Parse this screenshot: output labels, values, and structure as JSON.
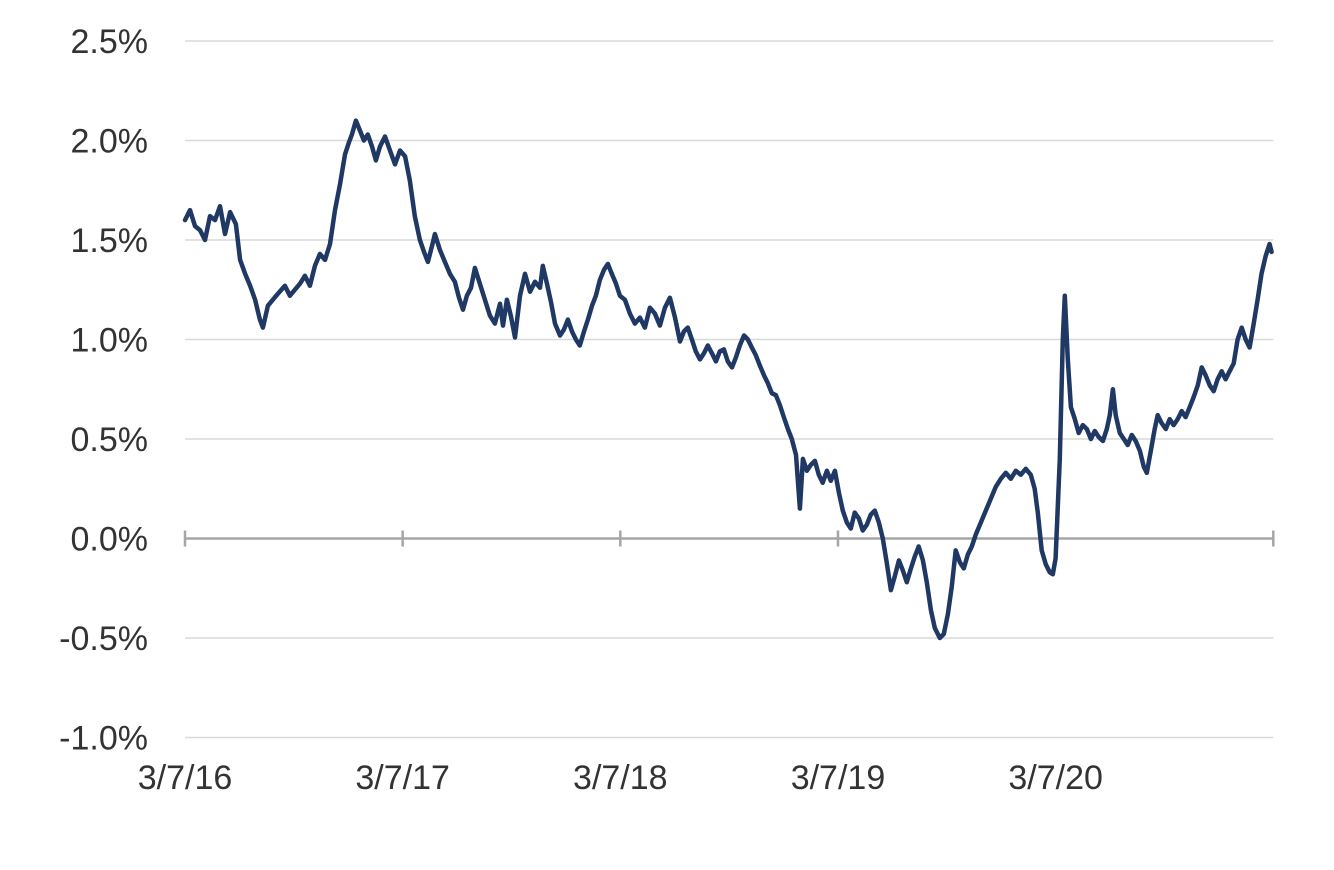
{
  "chart_data": {
    "type": "line",
    "title": "",
    "x_axis": {
      "tick_labels": [
        "3/7/16",
        "3/7/17",
        "3/7/18",
        "3/7/19",
        "3/7/20"
      ],
      "tick_positions": [
        0,
        1,
        2,
        3,
        4
      ],
      "boundary_positions": [
        0,
        1,
        2,
        3,
        4,
        5
      ],
      "range": [
        0,
        5
      ],
      "unit": "years since 3/7/16"
    },
    "y_axis": {
      "tick_labels": [
        "2.5%",
        "2.0%",
        "1.5%",
        "1.0%",
        "0.5%",
        "0.0%",
        "-0.5%",
        "-1.0%"
      ],
      "tick_values": [
        2.5,
        2.0,
        1.5,
        1.0,
        0.5,
        0.0,
        -0.5,
        -1.0
      ],
      "range": [
        -1.0,
        2.5
      ],
      "unit": "percent"
    },
    "grid": "on",
    "legend": "none",
    "colors": {
      "line": "#1f3864",
      "gridline": "#d9d9d9",
      "zero_axis": "#a6a6a6",
      "label_text": "#333333",
      "background": "#ffffff"
    },
    "series": [
      {
        "name": "",
        "points": [
          [
            0.0,
            1.6
          ],
          [
            0.023,
            1.65
          ],
          [
            0.046,
            1.57
          ],
          [
            0.069,
            1.55
          ],
          [
            0.092,
            1.5
          ],
          [
            0.115,
            1.62
          ],
          [
            0.138,
            1.6
          ],
          [
            0.161,
            1.67
          ],
          [
            0.184,
            1.53
          ],
          [
            0.207,
            1.64
          ],
          [
            0.234,
            1.58
          ],
          [
            0.253,
            1.4
          ],
          [
            0.276,
            1.33
          ],
          [
            0.299,
            1.27
          ],
          [
            0.322,
            1.2
          ],
          [
            0.344,
            1.1
          ],
          [
            0.358,
            1.06
          ],
          [
            0.381,
            1.17
          ],
          [
            0.404,
            1.2
          ],
          [
            0.427,
            1.23
          ],
          [
            0.459,
            1.27
          ],
          [
            0.482,
            1.22
          ],
          [
            0.505,
            1.25
          ],
          [
            0.528,
            1.28
          ],
          [
            0.551,
            1.32
          ],
          [
            0.574,
            1.27
          ],
          [
            0.597,
            1.37
          ],
          [
            0.62,
            1.43
          ],
          [
            0.643,
            1.4
          ],
          [
            0.666,
            1.48
          ],
          [
            0.689,
            1.65
          ],
          [
            0.712,
            1.78
          ],
          [
            0.735,
            1.93
          ],
          [
            0.753,
            1.99
          ],
          [
            0.767,
            2.03
          ],
          [
            0.785,
            2.1
          ],
          [
            0.804,
            2.05
          ],
          [
            0.822,
            2.0
          ],
          [
            0.84,
            2.03
          ],
          [
            0.859,
            1.97
          ],
          [
            0.877,
            1.9
          ],
          [
            0.896,
            1.97
          ],
          [
            0.919,
            2.02
          ],
          [
            0.942,
            1.95
          ],
          [
            0.965,
            1.88
          ],
          [
            0.988,
            1.95
          ],
          [
            1.011,
            1.92
          ],
          [
            1.033,
            1.8
          ],
          [
            1.056,
            1.62
          ],
          [
            1.079,
            1.5
          ],
          [
            1.098,
            1.44
          ],
          [
            1.116,
            1.39
          ],
          [
            1.135,
            1.47
          ],
          [
            1.148,
            1.53
          ],
          [
            1.171,
            1.45
          ],
          [
            1.194,
            1.39
          ],
          [
            1.217,
            1.33
          ],
          [
            1.24,
            1.29
          ],
          [
            1.259,
            1.21
          ],
          [
            1.277,
            1.15
          ],
          [
            1.295,
            1.22
          ],
          [
            1.314,
            1.26
          ],
          [
            1.332,
            1.36
          ],
          [
            1.355,
            1.28
          ],
          [
            1.378,
            1.2
          ],
          [
            1.401,
            1.12
          ],
          [
            1.424,
            1.08
          ],
          [
            1.447,
            1.18
          ],
          [
            1.461,
            1.07
          ],
          [
            1.479,
            1.2
          ],
          [
            1.497,
            1.12
          ],
          [
            1.516,
            1.01
          ],
          [
            1.539,
            1.22
          ],
          [
            1.562,
            1.33
          ],
          [
            1.585,
            1.24
          ],
          [
            1.608,
            1.29
          ],
          [
            1.631,
            1.26
          ],
          [
            1.644,
            1.37
          ],
          [
            1.663,
            1.28
          ],
          [
            1.681,
            1.19
          ],
          [
            1.7,
            1.08
          ],
          [
            1.723,
            1.02
          ],
          [
            1.741,
            1.05
          ],
          [
            1.759,
            1.1
          ],
          [
            1.778,
            1.04
          ],
          [
            1.796,
            1.0
          ],
          [
            1.814,
            0.97
          ],
          [
            1.833,
            1.04
          ],
          [
            1.851,
            1.1
          ],
          [
            1.87,
            1.17
          ],
          [
            1.888,
            1.22
          ],
          [
            1.906,
            1.3
          ],
          [
            1.925,
            1.35
          ],
          [
            1.943,
            1.38
          ],
          [
            1.961,
            1.33
          ],
          [
            1.98,
            1.28
          ],
          [
            1.998,
            1.22
          ],
          [
            2.021,
            1.2
          ],
          [
            2.044,
            1.13
          ],
          [
            2.067,
            1.08
          ],
          [
            2.09,
            1.11
          ],
          [
            2.113,
            1.06
          ],
          [
            2.136,
            1.16
          ],
          [
            2.159,
            1.13
          ],
          [
            2.182,
            1.07
          ],
          [
            2.205,
            1.16
          ],
          [
            2.228,
            1.21
          ],
          [
            2.251,
            1.11
          ],
          [
            2.274,
            0.99
          ],
          [
            2.292,
            1.04
          ],
          [
            2.31,
            1.06
          ],
          [
            2.329,
            1.0
          ],
          [
            2.347,
            0.94
          ],
          [
            2.366,
            0.9
          ],
          [
            2.384,
            0.93
          ],
          [
            2.402,
            0.97
          ],
          [
            2.421,
            0.93
          ],
          [
            2.439,
            0.89
          ],
          [
            2.457,
            0.94
          ],
          [
            2.476,
            0.95
          ],
          [
            2.494,
            0.89
          ],
          [
            2.513,
            0.86
          ],
          [
            2.531,
            0.91
          ],
          [
            2.549,
            0.97
          ],
          [
            2.568,
            1.02
          ],
          [
            2.586,
            1.0
          ],
          [
            2.604,
            0.96
          ],
          [
            2.623,
            0.92
          ],
          [
            2.641,
            0.87
          ],
          [
            2.66,
            0.82
          ],
          [
            2.678,
            0.78
          ],
          [
            2.696,
            0.73
          ],
          [
            2.715,
            0.72
          ],
          [
            2.733,
            0.67
          ],
          [
            2.751,
            0.61
          ],
          [
            2.77,
            0.55
          ],
          [
            2.788,
            0.5
          ],
          [
            2.807,
            0.42
          ],
          [
            2.825,
            0.15
          ],
          [
            2.839,
            0.4
          ],
          [
            2.857,
            0.34
          ],
          [
            2.875,
            0.37
          ],
          [
            2.894,
            0.39
          ],
          [
            2.912,
            0.32
          ],
          [
            2.93,
            0.28
          ],
          [
            2.949,
            0.34
          ],
          [
            2.967,
            0.29
          ],
          [
            2.986,
            0.34
          ],
          [
            3.004,
            0.23
          ],
          [
            3.022,
            0.14
          ],
          [
            3.041,
            0.08
          ],
          [
            3.059,
            0.05
          ],
          [
            3.077,
            0.13
          ],
          [
            3.096,
            0.1
          ],
          [
            3.114,
            0.04
          ],
          [
            3.133,
            0.07
          ],
          [
            3.151,
            0.12
          ],
          [
            3.169,
            0.14
          ],
          [
            3.188,
            0.08
          ],
          [
            3.206,
            0.0
          ],
          [
            3.224,
            -0.12
          ],
          [
            3.243,
            -0.26
          ],
          [
            3.261,
            -0.19
          ],
          [
            3.28,
            -0.11
          ],
          [
            3.298,
            -0.16
          ],
          [
            3.316,
            -0.22
          ],
          [
            3.335,
            -0.15
          ],
          [
            3.353,
            -0.09
          ],
          [
            3.371,
            -0.04
          ],
          [
            3.39,
            -0.11
          ],
          [
            3.408,
            -0.22
          ],
          [
            3.427,
            -0.36
          ],
          [
            3.445,
            -0.45
          ],
          [
            3.468,
            -0.5
          ],
          [
            3.486,
            -0.48
          ],
          [
            3.505,
            -0.38
          ],
          [
            3.523,
            -0.24
          ],
          [
            3.541,
            -0.06
          ],
          [
            3.56,
            -0.12
          ],
          [
            3.578,
            -0.15
          ],
          [
            3.597,
            -0.08
          ],
          [
            3.615,
            -0.04
          ],
          [
            3.633,
            0.02
          ],
          [
            3.656,
            0.08
          ],
          [
            3.679,
            0.14
          ],
          [
            3.702,
            0.2
          ],
          [
            3.725,
            0.26
          ],
          [
            3.748,
            0.3
          ],
          [
            3.771,
            0.33
          ],
          [
            3.794,
            0.3
          ],
          [
            3.817,
            0.34
          ],
          [
            3.84,
            0.32
          ],
          [
            3.863,
            0.35
          ],
          [
            3.886,
            0.32
          ],
          [
            3.904,
            0.25
          ],
          [
            3.918,
            0.13
          ],
          [
            3.936,
            -0.06
          ],
          [
            3.955,
            -0.13
          ],
          [
            3.973,
            -0.17
          ],
          [
            3.987,
            -0.18
          ],
          [
            4.0,
            -0.1
          ],
          [
            4.019,
            0.4
          ],
          [
            4.033,
            1.0
          ],
          [
            4.042,
            1.22
          ],
          [
            4.056,
            0.9
          ],
          [
            4.07,
            0.66
          ],
          [
            4.088,
            0.6
          ],
          [
            4.106,
            0.53
          ],
          [
            4.125,
            0.57
          ],
          [
            4.143,
            0.55
          ],
          [
            4.162,
            0.5
          ],
          [
            4.18,
            0.54
          ],
          [
            4.198,
            0.51
          ],
          [
            4.217,
            0.49
          ],
          [
            4.235,
            0.55
          ],
          [
            4.249,
            0.62
          ],
          [
            4.263,
            0.75
          ],
          [
            4.276,
            0.62
          ],
          [
            4.295,
            0.53
          ],
          [
            4.313,
            0.5
          ],
          [
            4.331,
            0.47
          ],
          [
            4.35,
            0.52
          ],
          [
            4.368,
            0.49
          ],
          [
            4.387,
            0.44
          ],
          [
            4.405,
            0.36
          ],
          [
            4.419,
            0.33
          ],
          [
            4.437,
            0.44
          ],
          [
            4.455,
            0.55
          ],
          [
            4.469,
            0.62
          ],
          [
            4.487,
            0.58
          ],
          [
            4.506,
            0.55
          ],
          [
            4.524,
            0.6
          ],
          [
            4.542,
            0.57
          ],
          [
            4.561,
            0.6
          ],
          [
            4.579,
            0.64
          ],
          [
            4.597,
            0.61
          ],
          [
            4.616,
            0.66
          ],
          [
            4.634,
            0.71
          ],
          [
            4.653,
            0.77
          ],
          [
            4.671,
            0.86
          ],
          [
            4.689,
            0.82
          ],
          [
            4.708,
            0.77
          ],
          [
            4.726,
            0.74
          ],
          [
            4.744,
            0.8
          ],
          [
            4.763,
            0.84
          ],
          [
            4.781,
            0.8
          ],
          [
            4.799,
            0.84
          ],
          [
            4.818,
            0.88
          ],
          [
            4.836,
            1.0
          ],
          [
            4.855,
            1.06
          ],
          [
            4.873,
            1.0
          ],
          [
            4.891,
            0.96
          ],
          [
            4.91,
            1.08
          ],
          [
            4.928,
            1.2
          ],
          [
            4.946,
            1.33
          ],
          [
            4.965,
            1.42
          ],
          [
            4.983,
            1.48
          ],
          [
            4.992,
            1.44
          ]
        ]
      }
    ]
  }
}
